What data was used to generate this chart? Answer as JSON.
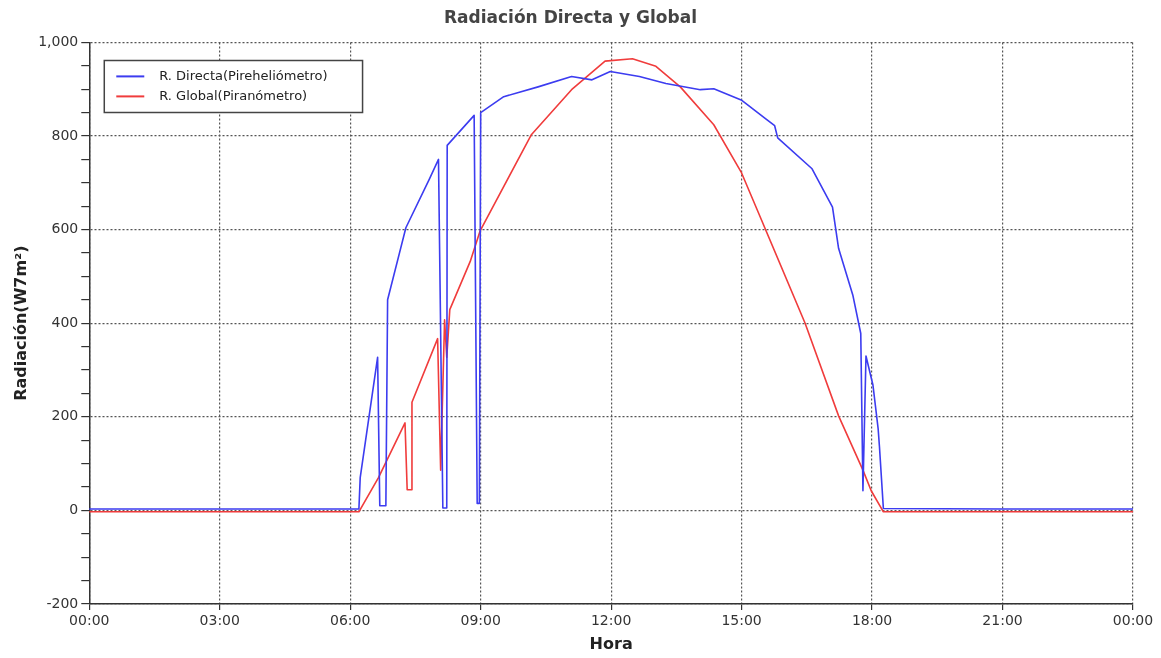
{
  "chart_data": {
    "type": "line",
    "title": "Radiación Directa y Global",
    "xlabel": "Hora",
    "ylabel": "Radiación(W7m²)",
    "xlim": [
      0,
      24
    ],
    "xticks": [
      {
        "value": 0,
        "label": "00:00"
      },
      {
        "value": 3,
        "label": "03:00"
      },
      {
        "value": 6,
        "label": "06:00"
      },
      {
        "value": 9,
        "label": "09:00"
      },
      {
        "value": 12,
        "label": "12:00"
      },
      {
        "value": 15,
        "label": "15:00"
      },
      {
        "value": 18,
        "label": "18:00"
      },
      {
        "value": 21,
        "label": "21:00"
      },
      {
        "value": 24,
        "label": "00:00"
      }
    ],
    "ylim": [
      -200,
      1000
    ],
    "yticks": [
      -200,
      {
        "value": -150,
        "label": null
      },
      {
        "value": -100,
        "label": null
      },
      {
        "value": -50,
        "label": null
      },
      0,
      {
        "value": 50,
        "label": null
      },
      {
        "value": 100,
        "label": null
      },
      {
        "value": 150,
        "label": null
      },
      200,
      {
        "value": 250,
        "label": null
      },
      {
        "value": 300,
        "label": null
      },
      {
        "value": 350,
        "label": null
      },
      400,
      {
        "value": 450,
        "label": null
      },
      {
        "value": 500,
        "label": null
      },
      {
        "value": 550,
        "label": null
      },
      600,
      {
        "value": 650,
        "label": null
      },
      {
        "value": 700,
        "label": null
      },
      {
        "value": 750,
        "label": null
      },
      800,
      {
        "value": 850,
        "label": null
      },
      {
        "value": 900,
        "label": null
      },
      {
        "value": 950,
        "label": null
      },
      {
        "value": 1000,
        "label": "1,000"
      }
    ],
    "grid": true,
    "legend": "top left",
    "marker": "none",
    "line_style": "solid",
    "series": [
      {
        "name": "R. Directa(Pireheliómetro)",
        "color": "#3c3cf0",
        "x": [
          0,
          3,
          6,
          6.2,
          6.23,
          6.63,
          6.68,
          6.82,
          6.86,
          7.28,
          7.82,
          8.03,
          8.13,
          8.22,
          8.23,
          8.85,
          8.92,
          8.97,
          9.0,
          9.53,
          10.32,
          11.09,
          11.56,
          11.98,
          12.65,
          13.26,
          14.05,
          14.36,
          14.99,
          15.76,
          15.83,
          16.62,
          17.09,
          17.23,
          17.56,
          17.74,
          17.79,
          17.86,
          18.02,
          18.14,
          18.17,
          18.26,
          21,
          24
        ],
        "values": [
          3,
          3,
          3,
          3,
          70,
          327,
          10,
          10,
          450,
          604,
          708,
          750,
          5,
          5,
          780,
          844,
          15,
          15,
          850,
          884,
          905,
          927,
          920,
          938,
          927,
          912,
          899,
          901,
          877,
          822,
          796,
          730,
          648,
          560,
          459,
          378,
          42,
          330,
          268,
          174,
          136,
          4,
          3,
          3
        ]
      },
      {
        "name": "R. Global(Piranómetro)",
        "color": "#f03c3c",
        "x": [
          0,
          3,
          6,
          6.2,
          6.65,
          7.26,
          7.31,
          7.4,
          7.42,
          8.01,
          8.08,
          8.17,
          8.22,
          8.29,
          8.76,
          8.99,
          10.16,
          11.09,
          11.86,
          12.49,
          13.03,
          13.59,
          14.36,
          14.99,
          15.46,
          16.46,
          17.23,
          17.79,
          17.98,
          18.26,
          21,
          24
        ],
        "values": [
          -3,
          -3,
          -3,
          -3,
          70,
          187,
          44,
          44,
          231,
          367,
          86,
          407,
          327,
          429,
          532,
          598,
          802,
          899,
          960,
          965,
          949,
          905,
          824,
          723,
          620,
          400,
          202,
          86,
          42,
          -3,
          -3,
          -3
        ]
      }
    ]
  }
}
